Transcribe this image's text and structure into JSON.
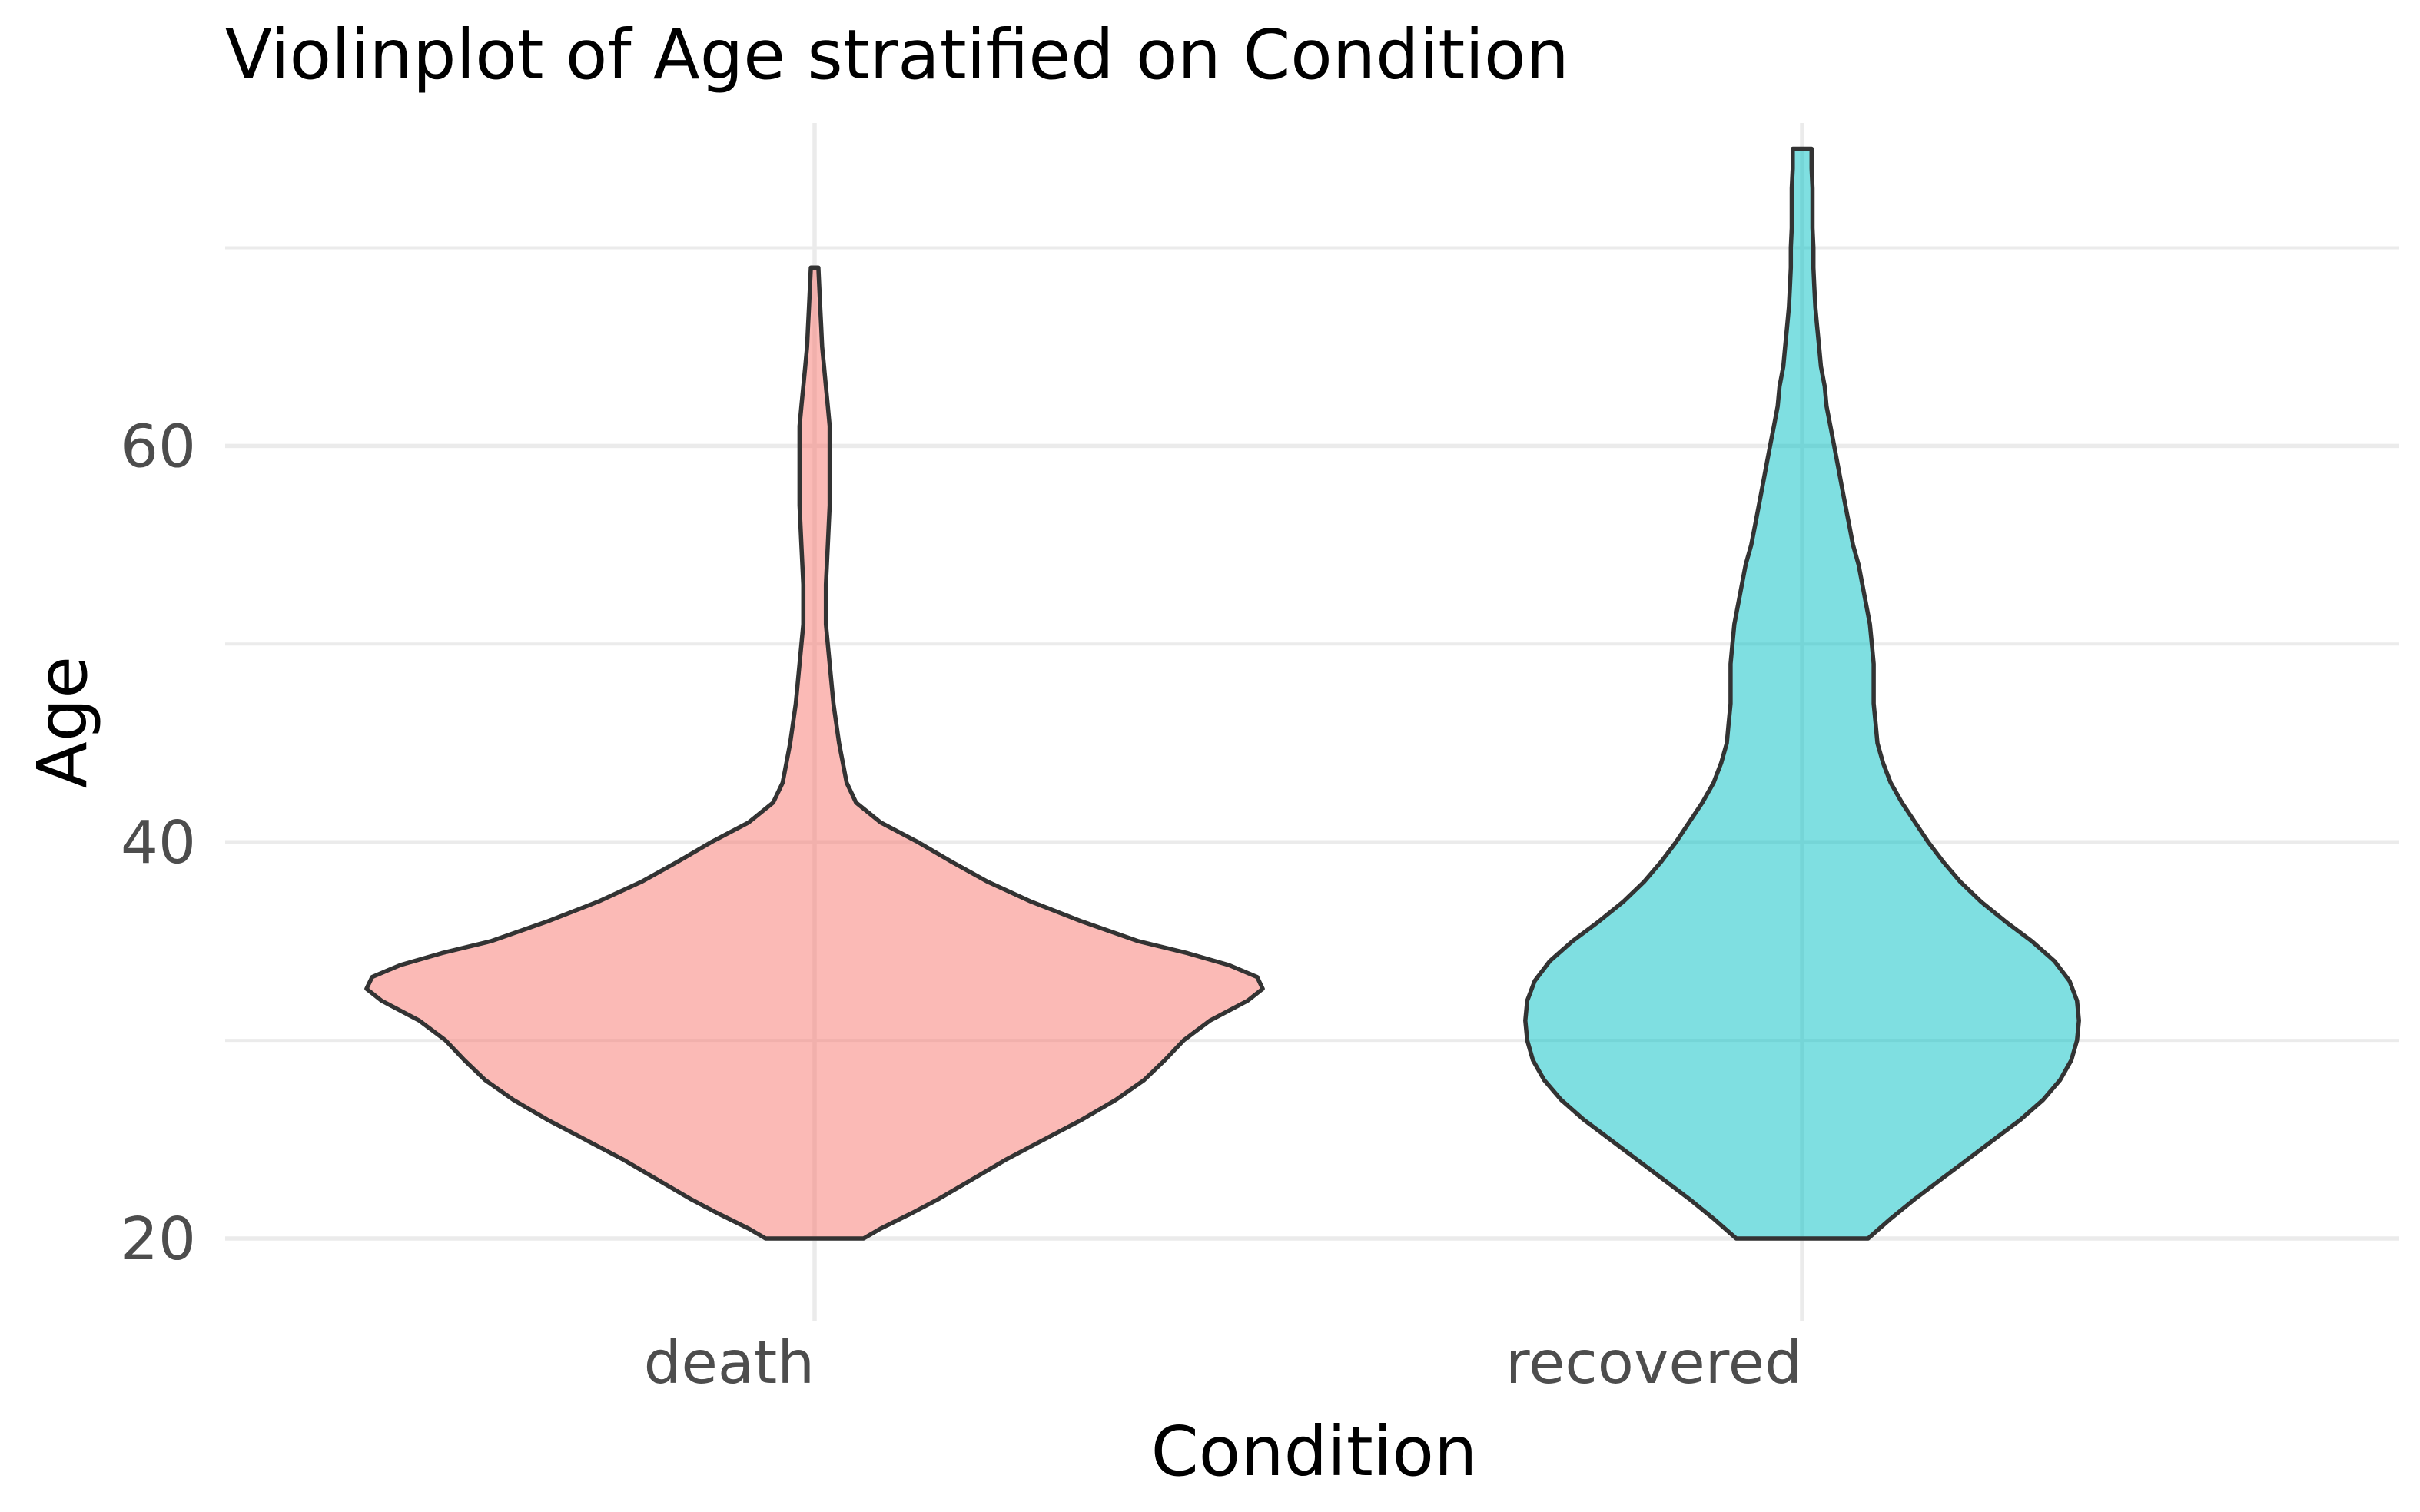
{
  "chart_data": {
    "type": "violin",
    "title": "Violinplot of Age stratified on Condition",
    "xlabel": "Condition",
    "ylabel": "Age",
    "categories": [
      "death",
      "recovered"
    ],
    "ylim": [
      16.2,
      76.3
    ],
    "y_major_ticks": [
      20,
      40,
      60
    ],
    "y_minor_ticks": [
      30,
      50,
      70
    ],
    "grid": true,
    "legend": "none",
    "fill_opacity": 0.5,
    "series": [
      {
        "category": "death",
        "color": "#F8766D",
        "density": [
          [
            20,
            0.26
          ],
          [
            20.5,
            0.35
          ],
          [
            21.3,
            0.52
          ],
          [
            22,
            0.66
          ],
          [
            23,
            0.84
          ],
          [
            24,
            1.02
          ],
          [
            25,
            1.22
          ],
          [
            26,
            1.42
          ],
          [
            27,
            1.6
          ],
          [
            28,
            1.75
          ],
          [
            29,
            1.86
          ],
          [
            30,
            1.96
          ],
          [
            31,
            2.1
          ],
          [
            31.5,
            2.2
          ],
          [
            32,
            2.3
          ],
          [
            32.6,
            2.38
          ],
          [
            33.2,
            2.35
          ],
          [
            33.8,
            2.2
          ],
          [
            34.4,
            1.98
          ],
          [
            35,
            1.72
          ],
          [
            36,
            1.42
          ],
          [
            37,
            1.15
          ],
          [
            38,
            0.92
          ],
          [
            39,
            0.73
          ],
          [
            40,
            0.55
          ],
          [
            41,
            0.35
          ],
          [
            42,
            0.22
          ],
          [
            43,
            0.17
          ],
          [
            45,
            0.13
          ],
          [
            47,
            0.1
          ],
          [
            49,
            0.08
          ],
          [
            51,
            0.06
          ],
          [
            53,
            0.06
          ],
          [
            55,
            0.07
          ],
          [
            57,
            0.08
          ],
          [
            59,
            0.08
          ],
          [
            61,
            0.08
          ],
          [
            62,
            0.07
          ],
          [
            63,
            0.06
          ],
          [
            64,
            0.05
          ],
          [
            65,
            0.04
          ],
          [
            66,
            0.035
          ],
          [
            67,
            0.03
          ],
          [
            68,
            0.025
          ],
          [
            69,
            0.02
          ]
        ]
      },
      {
        "category": "recovered",
        "color": "#00BFC4",
        "density": [
          [
            20,
            0.35
          ],
          [
            21,
            0.47
          ],
          [
            22,
            0.6
          ],
          [
            23,
            0.74
          ],
          [
            24,
            0.88
          ],
          [
            25,
            1.02
          ],
          [
            26,
            1.16
          ],
          [
            27,
            1.28
          ],
          [
            28,
            1.37
          ],
          [
            29,
            1.43
          ],
          [
            30,
            1.46
          ],
          [
            31,
            1.47
          ],
          [
            32,
            1.46
          ],
          [
            33,
            1.42
          ],
          [
            34,
            1.34
          ],
          [
            35,
            1.22
          ],
          [
            36,
            1.08
          ],
          [
            37,
            0.95
          ],
          [
            38,
            0.84
          ],
          [
            39,
            0.75
          ],
          [
            40,
            0.67
          ],
          [
            41,
            0.6
          ],
          [
            42,
            0.53
          ],
          [
            43,
            0.47
          ],
          [
            44,
            0.43
          ],
          [
            45,
            0.4
          ],
          [
            46,
            0.39
          ],
          [
            47,
            0.38
          ],
          [
            48,
            0.38
          ],
          [
            49,
            0.38
          ],
          [
            50,
            0.37
          ],
          [
            51,
            0.36
          ],
          [
            52,
            0.34
          ],
          [
            53,
            0.32
          ],
          [
            54,
            0.3
          ],
          [
            55,
            0.27
          ],
          [
            56,
            0.25
          ],
          [
            57,
            0.23
          ],
          [
            58,
            0.21
          ],
          [
            59,
            0.19
          ],
          [
            60,
            0.17
          ],
          [
            61,
            0.15
          ],
          [
            62,
            0.13
          ],
          [
            63,
            0.12
          ],
          [
            64,
            0.1
          ],
          [
            65,
            0.09
          ],
          [
            66,
            0.08
          ],
          [
            67,
            0.07
          ],
          [
            68,
            0.065
          ],
          [
            69,
            0.06
          ],
          [
            70,
            0.06
          ],
          [
            71,
            0.055
          ],
          [
            72,
            0.055
          ],
          [
            73,
            0.055
          ],
          [
            74,
            0.05
          ],
          [
            75,
            0.05
          ]
        ]
      }
    ]
  }
}
